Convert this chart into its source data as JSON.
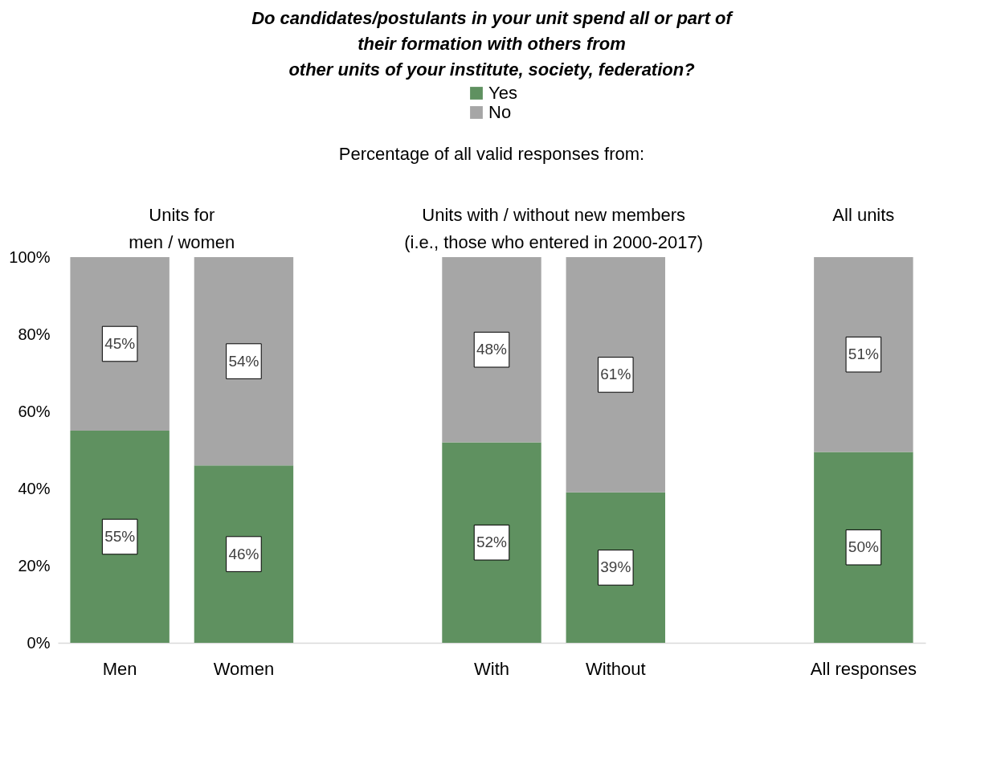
{
  "chart_data": {
    "type": "bar",
    "title": "Do candidates/postulants in your unit spend all or part of\ntheir formation with others from\nother units of your institute, society, federation?",
    "categories": [
      "Men",
      "Women",
      null,
      "With",
      "Without",
      null,
      "All responses"
    ],
    "stacked": true,
    "series": [
      {
        "name": "Yes",
        "color": "#5f9160",
        "values": [
          55,
          46,
          null,
          52,
          39,
          null,
          49.5
        ],
        "value_labels": [
          "55%",
          "46%",
          null,
          "52%",
          "39%",
          null,
          "50%"
        ]
      },
      {
        "name": "No",
        "color": "#a6a6a6",
        "values": [
          45,
          54,
          null,
          48,
          61,
          null,
          50.5
        ],
        "value_labels": [
          "45%",
          "54%",
          null,
          "48%",
          "61%",
          null,
          "51%"
        ]
      }
    ],
    "ylim": [
      0,
      100
    ],
    "yticks": [
      {
        "value": 0,
        "label": "0%"
      },
      {
        "value": 20,
        "label": "20%"
      },
      {
        "value": 40,
        "label": "40%"
      },
      {
        "value": 60,
        "label": "60%"
      },
      {
        "value": 80,
        "label": "80%"
      },
      {
        "value": 100,
        "label": "100%"
      }
    ],
    "grid": false,
    "legend": "top",
    "annotations": [
      "Percentage of all valid responses from:",
      "Units for\nmen / women",
      "Units with / without new members\n(i.e., those who entered in 2000-2017)",
      "All units"
    ]
  }
}
